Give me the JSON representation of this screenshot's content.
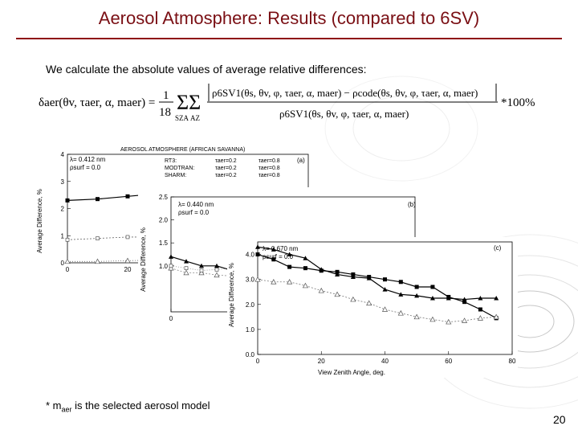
{
  "slide": {
    "title": "Aerosol Atmosphere: Results (compared to 6SV)",
    "intro": "We calculate the absolute values of average relative differences:",
    "formula": {
      "lhs": "δaer(θv, τaer, α, maer) =",
      "frac_num": "1",
      "frac_den": "18",
      "sum_sza": "SZA",
      "sum_az": "AZ",
      "numerator": "ρ6SV1(θs, θv, φ, τaer, α, maer) − ρcode(θs, θv, φ, τaer, α, maer)",
      "denominator": "ρ6SV1(θs, θv, φ, τaer, α, maer)",
      "suffix": "*100%"
    },
    "footnote_prefix": "* m",
    "footnote_sub": "aer",
    "footnote_rest": " is the selected aerosol model",
    "page_number": "20"
  },
  "chart_data": [
    {
      "id": "a",
      "type": "line",
      "title": "AEROSOL ATMOSPHERE (AFRICAN SAVANNA)",
      "panel_label": "(a)",
      "wavelength": "λ= 0.412 nm",
      "surface": "ρsurf = 0.0",
      "ylabel": "Average Difference, %",
      "ylim": [
        0,
        4
      ],
      "yticks": [
        "0",
        "1",
        "2",
        "3",
        "4"
      ],
      "xlim": [
        0,
        80
      ],
      "xticks": [
        "0",
        "20"
      ],
      "legend": {
        "codes": [
          "RT3:",
          "MODTRAN:",
          "SHARM:"
        ],
        "col1": [
          "τaer=0.2",
          "τaer=0.2",
          "τaer=0.2"
        ],
        "col2": [
          "τaer=0.8",
          "τaer=0.8",
          "τaer=0.8"
        ]
      },
      "x": [
        0,
        10,
        20,
        30
      ],
      "series": [
        {
          "name": "RT3: τaer=0.8",
          "values": [
            2.3,
            2.35,
            2.45,
            2.55
          ]
        },
        {
          "name": "RT3: τaer=0.2",
          "values": [
            0.85,
            0.9,
            0.95,
            0.95
          ]
        },
        {
          "name": "SHARM: τaer=0.2",
          "values": [
            0.05,
            0.05,
            0.08,
            0.1
          ]
        }
      ]
    },
    {
      "id": "b",
      "type": "line",
      "panel_label": "(b)",
      "wavelength": "λ= 0.440 nm",
      "surface": "ρsurf = 0.0",
      "ylabel": "Average Difference, %",
      "ylim": [
        0,
        2.5
      ],
      "yticks": [
        "1.0",
        "1.5",
        "2.0",
        "2.5"
      ],
      "xlim": [
        0,
        80
      ],
      "xticks": [
        "0"
      ],
      "x": [
        0,
        5,
        10,
        15,
        20,
        25,
        30
      ],
      "series": [
        {
          "name": "MODTRAN: τaer=0.8",
          "values": [
            0.95,
            0.85,
            0.85,
            0.8,
            0.78,
            0.7,
            0.6
          ]
        },
        {
          "name": "RT3: τaer=0.2",
          "values": [
            1.0,
            0.95,
            0.9,
            0.92,
            0.95,
            0.9,
            0.85
          ]
        },
        {
          "name": "RT3: τaer=0.8",
          "values": [
            1.2,
            1.1,
            1.0,
            1.0,
            0.9,
            0.8,
            0.6
          ]
        }
      ]
    },
    {
      "id": "c",
      "type": "line",
      "panel_label": "(c)",
      "wavelength": "λ= 0.670 nm",
      "surface": "ρsurf = 0.0",
      "xlabel": "View Zenith Angle, deg.",
      "ylabel": "Average Difference, %",
      "ylim": [
        0,
        4.5
      ],
      "yticks": [
        "0.0",
        "1.0",
        "2.0",
        "3.0",
        "4.0"
      ],
      "xlim": [
        0,
        80
      ],
      "xticks": [
        "0",
        "20",
        "40",
        "60",
        "80"
      ],
      "x": [
        0,
        5,
        10,
        15,
        20,
        25,
        30,
        35,
        40,
        45,
        50,
        55,
        60,
        65,
        70,
        75
      ],
      "series": [
        {
          "name": "MODTRAN: τaer=0.8",
          "values": [
            4.3,
            4.2,
            4.0,
            3.85,
            3.4,
            3.2,
            3.1,
            3.05,
            2.6,
            2.4,
            2.35,
            2.25,
            2.25,
            2.2,
            2.25,
            2.25
          ]
        },
        {
          "name": "RT3: τaer=0.8",
          "values": [
            4.0,
            3.8,
            3.5,
            3.45,
            3.35,
            3.3,
            3.2,
            3.1,
            3.0,
            2.9,
            2.7,
            2.7,
            2.3,
            2.1,
            1.8,
            1.45
          ]
        },
        {
          "name": "RT3: τaer=0.2",
          "values": [
            3.0,
            2.9,
            2.9,
            2.75,
            2.55,
            2.4,
            2.2,
            2.05,
            1.8,
            1.65,
            1.5,
            1.4,
            1.3,
            1.35,
            1.45,
            1.5
          ]
        }
      ]
    }
  ]
}
